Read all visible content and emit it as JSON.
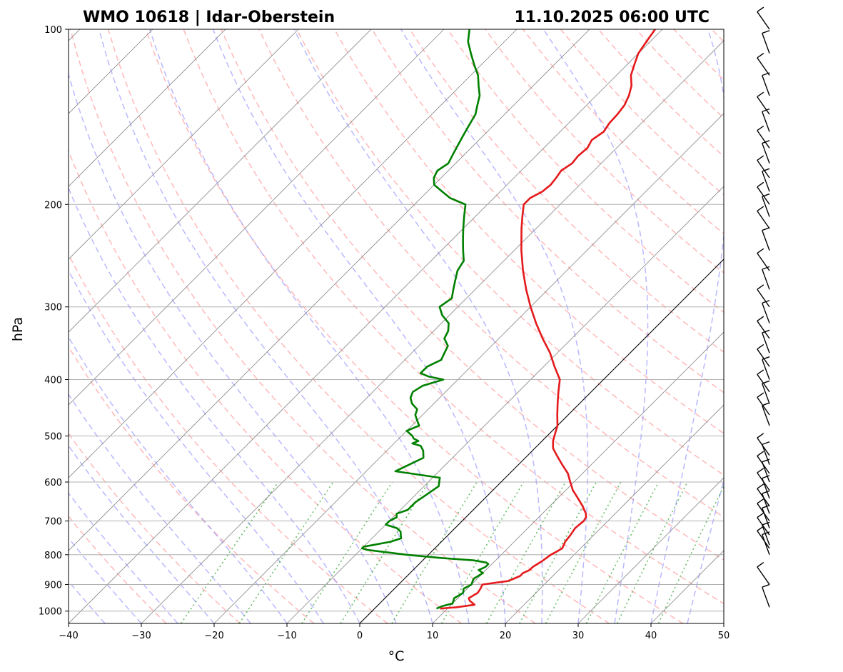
{
  "chart_data": {
    "type": "line",
    "chart_kind": "Skew-T log-P diagram",
    "title_left": "WMO 10618 | Idar-Oberstein",
    "title_right": "11.10.2025 06:00 UTC",
    "xlabel": "°C",
    "ylabel": "hPa",
    "xlim": [
      -40,
      50
    ],
    "ylim": [
      1050,
      100
    ],
    "x_ticks": [
      -40,
      -30,
      -20,
      -10,
      0,
      10,
      20,
      30,
      40,
      50
    ],
    "x_tick_labels": [
      "−40",
      "−30",
      "−20",
      "−10",
      "0",
      "10",
      "20",
      "30",
      "40",
      "50"
    ],
    "y_ticks": [
      1000,
      900,
      800,
      700,
      600,
      500,
      400,
      300,
      200,
      100
    ],
    "y_tick_labels": [
      "1000",
      "900",
      "800",
      "700",
      "600",
      "500",
      "400",
      "300",
      "200",
      "100"
    ],
    "grid": true,
    "colors": {
      "temperature": "#e41a1c",
      "dewpoint": "#008000",
      "dry_adiabat": "#ff8080",
      "moist_adiabat": "#8080ff",
      "mixing_ratio": "#33aa33",
      "isotherm": "#888888",
      "zero_isotherm": "#000000",
      "wind_barb": "#000000"
    },
    "series": [
      {
        "name": "Temperature",
        "pressure": [
          990,
          985,
          975,
          960,
          950,
          930,
          915,
          900,
          888,
          880,
          870,
          860,
          850,
          840,
          820,
          800,
          790,
          780,
          760,
          740,
          720,
          700,
          690,
          680,
          660,
          640,
          620,
          600,
          580,
          560,
          540,
          525,
          510,
          500,
          480,
          460,
          440,
          420,
          400,
          380,
          360,
          340,
          320,
          300,
          280,
          260,
          240,
          220,
          210,
          200,
          195,
          190,
          185,
          180,
          175,
          170,
          165,
          160,
          155,
          150,
          145,
          140,
          135,
          130,
          125,
          120,
          115,
          110,
          105,
          100
        ],
        "values": [
          9.0,
          11.0,
          13.2,
          12.0,
          11.5,
          12.0,
          11.8,
          11.5,
          14.5,
          15.0,
          15.5,
          15.5,
          16.0,
          16.0,
          16.5,
          16.8,
          17.2,
          17.5,
          17.0,
          16.8,
          16.5,
          16.7,
          16.5,
          16.0,
          14.5,
          12.8,
          11.0,
          9.5,
          8.0,
          6.0,
          4.0,
          2.5,
          1.5,
          1.0,
          0.0,
          -1.5,
          -3.0,
          -4.5,
          -6.0,
          -8.5,
          -11.0,
          -14.0,
          -17.0,
          -20.0,
          -23.0,
          -26.0,
          -29.0,
          -32.0,
          -33.5,
          -35.0,
          -35.0,
          -34.2,
          -34.0,
          -34.2,
          -34.5,
          -34.0,
          -34.2,
          -34.0,
          -34.5,
          -34.0,
          -34.4,
          -34.5,
          -34.8,
          -35.5,
          -36.5,
          -38.0,
          -39.0,
          -40.0,
          -40.5,
          -41.0
        ]
      },
      {
        "name": "Dewpoint",
        "pressure": [
          990,
          980,
          970,
          950,
          930,
          915,
          900,
          880,
          860,
          850,
          840,
          830,
          825,
          818,
          810,
          800,
          795,
          785,
          780,
          775,
          770,
          760,
          750,
          740,
          730,
          720,
          710,
          700,
          690,
          680,
          670,
          660,
          650,
          630,
          610,
          600,
          590,
          575,
          560,
          545,
          530,
          520,
          515,
          510,
          505,
          500,
          490,
          480,
          470,
          460,
          450,
          440,
          430,
          420,
          410,
          400,
          395,
          390,
          380,
          370,
          360,
          350,
          340,
          330,
          320,
          310,
          300,
          290,
          280,
          270,
          260,
          250,
          240,
          230,
          220,
          210,
          200,
          195,
          190,
          185,
          180,
          175,
          170,
          165,
          160,
          155,
          150,
          145,
          140,
          135,
          130,
          125,
          120,
          115,
          110,
          105,
          100
        ],
        "values": [
          8.5,
          9.0,
          10.0,
          9.5,
          10.0,
          9.5,
          10.0,
          9.5,
          10.0,
          9.0,
          9.5,
          9.5,
          9.0,
          7.0,
          2.0,
          -3.0,
          -5.0,
          -9.0,
          -10.0,
          -10.0,
          -9.0,
          -7.0,
          -6.0,
          -6.5,
          -7.0,
          -8.0,
          -10.0,
          -10.0,
          -9.5,
          -10.0,
          -9.0,
          -9.0,
          -9.0,
          -8.5,
          -8.0,
          -8.5,
          -9.0,
          -16.0,
          -15.0,
          -14.0,
          -15.0,
          -16.0,
          -17.5,
          -17.0,
          -18.0,
          -18.5,
          -20.0,
          -19.0,
          -20.0,
          -21.0,
          -21.5,
          -23.0,
          -24.0,
          -24.5,
          -24.0,
          -22.0,
          -24.5,
          -26.0,
          -26.0,
          -25.0,
          -25.5,
          -26.0,
          -27.5,
          -28.0,
          -29.0,
          -31.0,
          -32.5,
          -32.0,
          -33.0,
          -34.0,
          -35.0,
          -35.5,
          -37.0,
          -38.5,
          -40.0,
          -41.5,
          -43.0,
          -46.0,
          -48.0,
          -50.0,
          -51.0,
          -51.5,
          -51.0,
          -51.5,
          -52.0,
          -52.5,
          -53.0,
          -53.5,
          -54.0,
          -55.0,
          -56.0,
          -57.5,
          -59.0,
          -61.0,
          -63.0,
          -65.0,
          -66.5
        ]
      }
    ],
    "wind_barbs": {
      "pressure": [
        985,
        900,
        800,
        780,
        770,
        740,
        720,
        700,
        680,
        660,
        640,
        620,
        600,
        580,
        560,
        540,
        480,
        460,
        440,
        420,
        400,
        380,
        360,
        340,
        320,
        300,
        280,
        260,
        240,
        220,
        210,
        200,
        190,
        180,
        170,
        160,
        150,
        140,
        130,
        120,
        110,
        100
      ]
    }
  }
}
